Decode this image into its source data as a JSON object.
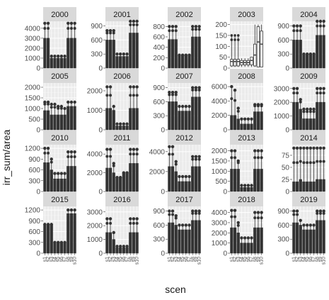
{
  "chart_data": {
    "type": "box",
    "layout": "facet_wrap 4 rows x 5 columns, free y scales",
    "xlabel": "scen",
    "ylabel": "irr_sum/area",
    "x_tick_labels": [
      "s1",
      "s2",
      "s3",
      "s4",
      "s5",
      "s6",
      "s7",
      "s8",
      "s9",
      "s10"
    ],
    "x_tick_labels_visible_on_bottom_row_only": true,
    "panel_background": "#ebebeb",
    "strip_background": "#d9d9d9",
    "box_color": "#333333",
    "point_color": "#333333",
    "grid": true,
    "panels": [
      {
        "year": "2000",
        "yticks": [
          0,
          1000,
          2000,
          3000,
          4000
        ],
        "ylim": [
          0,
          4700
        ],
        "max": [
          4500,
          4500,
          1200,
          1200,
          1200,
          1200,
          1200,
          4500,
          4500,
          4500
        ],
        "med": [
          3000,
          3000,
          1000,
          1000,
          1000,
          1000,
          1000,
          3000,
          3000,
          3000
        ],
        "min": [
          0,
          0,
          0,
          0,
          0,
          0,
          0,
          0,
          0,
          0
        ]
      },
      {
        "year": "2001",
        "yticks": [
          0,
          300,
          600,
          900
        ],
        "ylim": [
          0,
          1000
        ],
        "max": [
          800,
          800,
          800,
          300,
          300,
          300,
          300,
          1000,
          1000,
          1000
        ],
        "med": [
          600,
          600,
          600,
          250,
          250,
          250,
          250,
          750,
          750,
          750
        ],
        "min": [
          0,
          0,
          0,
          0,
          0,
          0,
          0,
          0,
          0,
          0
        ]
      },
      {
        "year": "2002",
        "yticks": [
          0,
          200,
          400,
          600,
          800
        ],
        "ylim": [
          0,
          900
        ],
        "max": [
          800,
          800,
          800,
          250,
          250,
          250,
          250,
          800,
          800,
          800
        ],
        "med": [
          550,
          550,
          550,
          250,
          250,
          250,
          250,
          600,
          600,
          600
        ],
        "min": [
          0,
          0,
          0,
          0,
          0,
          0,
          0,
          0,
          0,
          0
        ]
      },
      {
        "year": "2003",
        "yticks": [
          0,
          50,
          100,
          150,
          200
        ],
        "ylim": [
          0,
          215
        ],
        "boxplot": true,
        "max": [
          150,
          150,
          150,
          45,
          45,
          45,
          45,
          200,
          200,
          200
        ],
        "q3": [
          40,
          40,
          40,
          35,
          35,
          35,
          50,
          110,
          190,
          170
        ],
        "med": [
          30,
          30,
          30,
          25,
          25,
          25,
          35,
          60,
          120,
          110
        ],
        "q1": [
          10,
          10,
          10,
          15,
          15,
          15,
          15,
          10,
          5,
          5
        ],
        "min": [
          5,
          5,
          5,
          5,
          5,
          5,
          5,
          5,
          5,
          5
        ],
        "outliers": [
          [
            130,
            150
          ],
          [
            130,
            150
          ],
          [
            130,
            150
          ],
          [],
          [],
          [],
          [],
          [],
          [],
          []
        ]
      },
      {
        "year": "2004",
        "yticks": [
          0,
          300,
          600,
          900
        ],
        "ylim": [
          0,
          1000
        ],
        "max": [
          900,
          900,
          900,
          300,
          300,
          300,
          300,
          1000,
          1000,
          1000
        ],
        "med": [
          600,
          600,
          600,
          300,
          300,
          300,
          300,
          700,
          700,
          700
        ],
        "min": [
          0,
          0,
          0,
          0,
          0,
          0,
          0,
          0,
          0,
          0
        ]
      },
      {
        "year": "2005",
        "yticks": [
          0,
          500,
          1000,
          1500,
          2000
        ],
        "ylim": [
          0,
          2200
        ],
        "max": [
          1300,
          1300,
          1200,
          1200,
          1100,
          1100,
          1000,
          1300,
          1300,
          1300
        ],
        "med": [
          900,
          900,
          700,
          700,
          700,
          700,
          700,
          1100,
          1100,
          1100
        ],
        "min": [
          0,
          0,
          0,
          0,
          0,
          0,
          0,
          0,
          0,
          0
        ]
      },
      {
        "year": "2006",
        "yticks": [
          0,
          1000,
          2000
        ],
        "ylim": [
          0,
          2400
        ],
        "max": [
          2200,
          2200,
          1200,
          300,
          300,
          300,
          300,
          2200,
          2200,
          2200
        ],
        "med": [
          1100,
          1100,
          1000,
          200,
          200,
          200,
          200,
          1100,
          1100,
          1100
        ],
        "min": [
          0,
          0,
          0,
          0,
          0,
          0,
          0,
          0,
          0,
          0
        ]
      },
      {
        "year": "2007",
        "yticks": [
          0,
          300,
          600,
          900
        ],
        "ylim": [
          0,
          1000
        ],
        "max": [
          800,
          800,
          800,
          500,
          500,
          500,
          500,
          900,
          900,
          900
        ],
        "med": [
          600,
          600,
          600,
          400,
          400,
          400,
          400,
          700,
          700,
          700
        ],
        "min": [
          0,
          0,
          0,
          0,
          0,
          0,
          0,
          0,
          0,
          0
        ]
      },
      {
        "year": "2008",
        "yticks": [
          0,
          2000,
          4000,
          6000
        ],
        "ylim": [
          0,
          6500
        ],
        "max": [
          6000,
          5500,
          3000,
          1500,
          1500,
          1500,
          1500,
          3500,
          3500,
          3500
        ],
        "med": [
          2000,
          2000,
          1500,
          800,
          800,
          800,
          800,
          2500,
          2500,
          2500
        ],
        "min": [
          0,
          0,
          0,
          0,
          0,
          0,
          0,
          0,
          0,
          0
        ]
      },
      {
        "year": "2009",
        "yticks": [
          0,
          1000,
          2000,
          3000
        ],
        "ylim": [
          0,
          3400
        ],
        "max": [
          3000,
          3000,
          2200,
          1500,
          1500,
          1500,
          1500,
          3000,
          3000,
          3000
        ],
        "med": [
          2000,
          2000,
          1500,
          800,
          800,
          800,
          800,
          2000,
          2000,
          2000
        ],
        "min": [
          0,
          0,
          0,
          0,
          0,
          0,
          0,
          0,
          0,
          0
        ]
      },
      {
        "year": "2010",
        "yticks": [
          0,
          300,
          600,
          900,
          1200
        ],
        "ylim": [
          0,
          1300
        ],
        "max": [
          1200,
          1200,
          900,
          500,
          500,
          500,
          500,
          1100,
          1100,
          1100
        ],
        "med": [
          800,
          800,
          600,
          350,
          350,
          350,
          350,
          700,
          700,
          700
        ],
        "min": [
          0,
          0,
          0,
          0,
          0,
          0,
          0,
          0,
          0,
          0
        ]
      },
      {
        "year": "2011",
        "yticks": [
          0,
          2000,
          4000
        ],
        "ylim": [
          0,
          5000
        ],
        "max": [
          4500,
          4500,
          3000,
          1500,
          1500,
          2000,
          2000,
          4500,
          4500,
          4500
        ],
        "med": [
          2500,
          2500,
          2000,
          1500,
          1500,
          2000,
          2000,
          3000,
          3000,
          3000
        ],
        "min": [
          0,
          0,
          0,
          0,
          0,
          0,
          0,
          0,
          0,
          0
        ]
      },
      {
        "year": "2012",
        "yticks": [
          0,
          2000,
          4000
        ],
        "ylim": [
          0,
          4700
        ],
        "max": [
          4500,
          4500,
          3000,
          1500,
          1500,
          1500,
          1500,
          3500,
          3500,
          3500
        ],
        "med": [
          2500,
          2500,
          2000,
          1000,
          1000,
          1000,
          1000,
          2500,
          2500,
          2500
        ],
        "min": [
          0,
          0,
          0,
          0,
          0,
          0,
          0,
          0,
          0,
          0
        ]
      },
      {
        "year": "2013",
        "yticks": [
          0,
          500,
          1000,
          1500,
          2000
        ],
        "ylim": [
          0,
          2300
        ],
        "max": [
          2000,
          2000,
          1500,
          300,
          300,
          300,
          300,
          2000,
          2000,
          2000
        ],
        "med": [
          1100,
          1100,
          1100,
          200,
          200,
          200,
          200,
          1100,
          1100,
          1100
        ],
        "min": [
          0,
          0,
          0,
          0,
          0,
          0,
          0,
          0,
          0,
          0
        ]
      },
      {
        "year": "2014",
        "yticks": [
          0,
          25,
          50,
          75
        ],
        "ylim": [
          0,
          97
        ],
        "max": [
          90,
          90,
          90,
          90,
          90,
          90,
          90,
          90,
          90,
          90
        ],
        "med": [
          20,
          20,
          25,
          20,
          20,
          20,
          20,
          25,
          25,
          25
        ],
        "min": [
          0,
          0,
          0,
          0,
          0,
          0,
          0,
          0,
          0,
          0
        ]
      },
      {
        "year": "2015",
        "yticks": [
          0,
          300,
          600,
          900,
          1200
        ],
        "ylim": [
          0,
          1300
        ],
        "max": [
          800,
          800,
          800,
          300,
          300,
          300,
          300,
          1200,
          1200,
          1200
        ],
        "med": [
          800,
          800,
          800,
          300,
          300,
          300,
          300,
          1100,
          1100,
          1100
        ],
        "min": [
          0,
          0,
          0,
          0,
          0,
          0,
          0,
          0,
          0,
          0
        ]
      },
      {
        "year": "2016",
        "yticks": [
          0,
          1000,
          2000,
          3000
        ],
        "ylim": [
          0,
          3400
        ],
        "max": [
          2500,
          2500,
          1500,
          500,
          500,
          500,
          500,
          2500,
          2500,
          2500
        ],
        "med": [
          1500,
          1500,
          1000,
          400,
          400,
          400,
          400,
          1500,
          1500,
          1500
        ],
        "min": [
          0,
          0,
          0,
          0,
          0,
          0,
          0,
          0,
          0,
          0
        ]
      },
      {
        "year": "2017",
        "yticks": [
          0,
          300,
          600,
          900
        ],
        "ylim": [
          0,
          1000
        ],
        "max": [
          900,
          900,
          800,
          600,
          600,
          600,
          600,
          900,
          900,
          900
        ],
        "med": [
          650,
          650,
          600,
          500,
          500,
          500,
          500,
          700,
          700,
          700
        ],
        "min": [
          0,
          0,
          0,
          0,
          0,
          0,
          0,
          0,
          0,
          0
        ]
      },
      {
        "year": "2018",
        "yticks": [
          0,
          1000,
          2000,
          3000,
          4000
        ],
        "ylim": [
          0,
          4600
        ],
        "max": [
          4200,
          4200,
          3000,
          1500,
          1500,
          1500,
          1500,
          4000,
          4000,
          4000
        ],
        "med": [
          2500,
          2500,
          2000,
          1000,
          1000,
          1000,
          1000,
          2500,
          2500,
          2500
        ],
        "min": [
          0,
          0,
          0,
          0,
          0,
          0,
          0,
          0,
          0,
          0
        ]
      },
      {
        "year": "2019",
        "yticks": [
          0,
          300,
          600,
          900
        ],
        "ylim": [
          0,
          1000
        ],
        "max": [
          900,
          900,
          700,
          600,
          600,
          600,
          600,
          900,
          900,
          900
        ],
        "med": [
          650,
          650,
          600,
          500,
          500,
          500,
          500,
          700,
          700,
          700
        ],
        "min": [
          0,
          0,
          0,
          0,
          0,
          0,
          0,
          0,
          0,
          0
        ]
      }
    ]
  }
}
